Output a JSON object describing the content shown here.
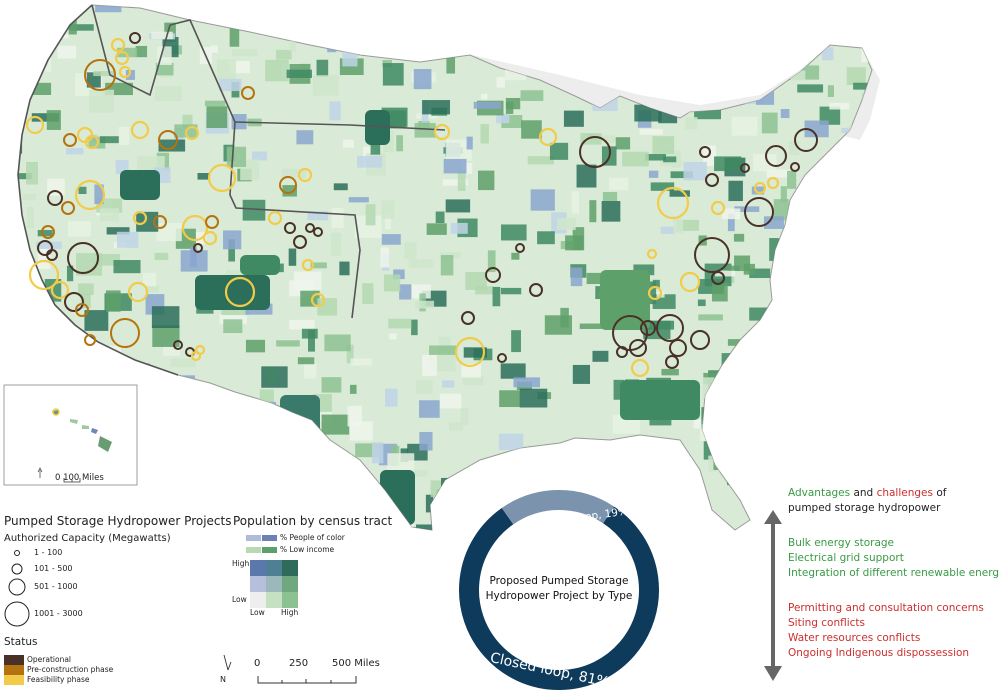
{
  "colors": {
    "operational": "#4a3128",
    "pre_construction": "#b5730f",
    "feasibility": "#f2cb4a",
    "low_income": "#5ea06a",
    "people_of_color": "#6c82b5",
    "advantage_green": "#3a9a45",
    "challenge_red": "#cc2f2f",
    "donut_dark": "#0e3a5b",
    "donut_light": "#7b93ad"
  },
  "inset": {
    "scale_label": "0   100 Miles"
  },
  "capacity_legend": {
    "title": "Pumped Storage Hydropower Projects",
    "subtitle": "Authorized Capacity (Megawatts)",
    "classes": [
      "1 - 100",
      "101 - 500",
      "501 - 1000",
      "1001 - 3000"
    ]
  },
  "status_legend": {
    "title": "Status",
    "items": [
      "Operational",
      "Pre-construction phase",
      "Feasibility phase"
    ]
  },
  "population_legend": {
    "title": "Population by census tract",
    "poc_label": "% People of color",
    "income_label": "% Low income",
    "axis_high_y": "High",
    "axis_low_y": "Low",
    "axis_low_x": "Low",
    "axis_high_x": "High"
  },
  "scale_bar": {
    "labels": [
      "0",
      "250",
      "500 Miles"
    ],
    "north": "N"
  },
  "donut": {
    "title_line1": "Proposed Pumped Storage",
    "title_line2": "Hydropower Project by Type",
    "open_label": "Open loop, 19%",
    "closed_label": "Closed loop, 81%",
    "open_pct": 19,
    "closed_pct": 81
  },
  "side_panel": {
    "heading_adv": "Advantages",
    "heading_and": " and ",
    "heading_chal": "challenges",
    "heading_of": " of",
    "heading_line2": "pumped storage hydropower",
    "advantages": [
      "Bulk energy storage",
      "Electrical grid support",
      "Integration of different renewable energies"
    ],
    "challenges": [
      "Permitting and consultation concerns",
      "Siting conflicts",
      "Water resources conflicts",
      "Ongoing Indigenous dispossession"
    ]
  }
}
